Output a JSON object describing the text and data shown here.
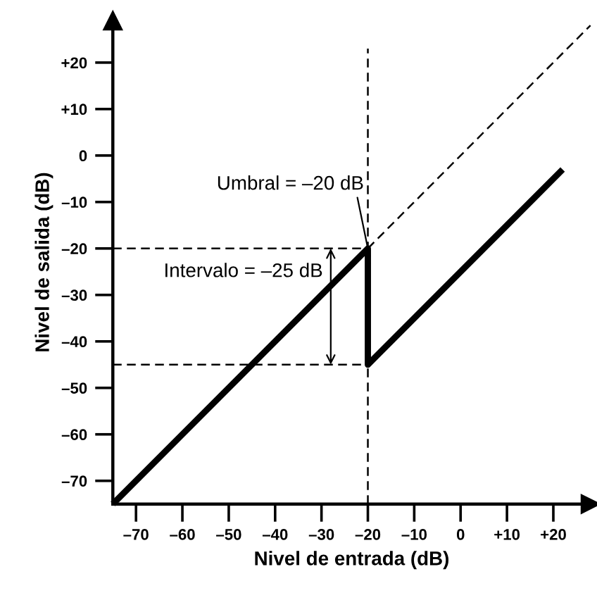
{
  "chart_data": {
    "type": "line",
    "xlabel": "Nivel de entrada (dB)",
    "ylabel": "Nivel de salida (dB)",
    "xlim": [
      -75,
      28
    ],
    "ylim": [
      -75,
      29
    ],
    "xticks": [
      {
        "value": -70,
        "label": "–70"
      },
      {
        "value": -60,
        "label": "–60"
      },
      {
        "value": -50,
        "label": "–50"
      },
      {
        "value": -40,
        "label": "–40"
      },
      {
        "value": -30,
        "label": "–30"
      },
      {
        "value": -20,
        "label": "–20"
      },
      {
        "value": -10,
        "label": "–10"
      },
      0,
      {
        "value": 10,
        "label": "+10"
      },
      {
        "value": 20,
        "label": "+20"
      }
    ],
    "yticks": [
      {
        "value": -70,
        "label": "–70"
      },
      {
        "value": -60,
        "label": "–60"
      },
      {
        "value": -50,
        "label": "–50"
      },
      {
        "value": -40,
        "label": "–40"
      },
      {
        "value": -30,
        "label": "–30"
      },
      {
        "value": -20,
        "label": "–20"
      },
      {
        "value": -10,
        "label": "–10"
      },
      0,
      {
        "value": 10,
        "label": "+10"
      },
      {
        "value": 20,
        "label": "+20"
      }
    ],
    "grid": false,
    "legend": false,
    "marker": "none",
    "series": [
      {
        "color": "#000000",
        "line_style": "solid",
        "x": [
          -75,
          -20,
          -20,
          22
        ],
        "values": [
          -75,
          -20,
          -45,
          -3
        ]
      },
      {
        "color": "#000000",
        "line_style": "dashed",
        "x": [
          -20,
          28
        ],
        "values": [
          -20,
          28
        ]
      },
      {
        "color": "#000000",
        "line_style": "dashed",
        "x": [
          -20,
          -20
        ],
        "values": [
          -75,
          23
        ]
      },
      {
        "color": "#000000",
        "line_style": "dashed",
        "x": [
          -75,
          -20
        ],
        "values": [
          -20,
          -20
        ]
      },
      {
        "color": "#000000",
        "line_style": "dashed",
        "x": [
          -75,
          -20
        ],
        "values": [
          -45,
          -45
        ]
      }
    ],
    "annotations": [
      {
        "text": "Umbral = –20 dB",
        "x": -20,
        "y": -20
      },
      {
        "text": "Intervalo = –25 dB",
        "x": -28,
        "y": -20
      }
    ]
  }
}
